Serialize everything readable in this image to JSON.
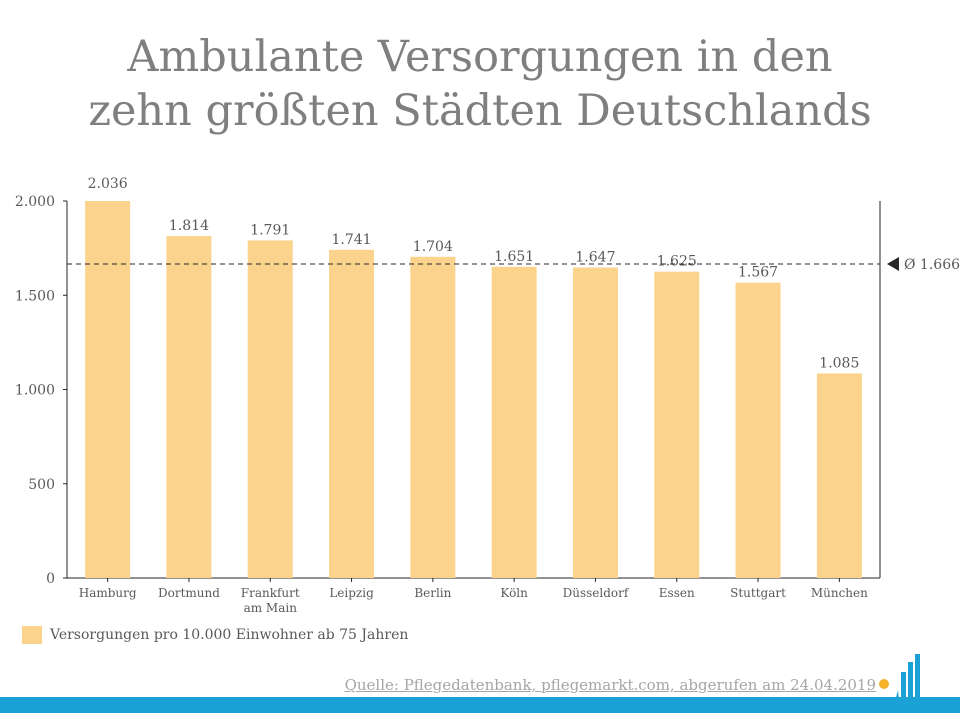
{
  "header": {
    "title_line1": "Ambulante Versorgungen in den",
    "title_line2": "zehn größten Städten Deutschlands"
  },
  "chart_data": {
    "type": "bar",
    "title": "Ambulante Versorgungen in den zehn größten Städten Deutschlands",
    "categories": [
      "Hamburg",
      "Dortmund",
      "Frankfurt am Main",
      "Leipzig",
      "Berlin",
      "Köln",
      "Düsseldorf",
      "Essen",
      "Stuttgart",
      "München"
    ],
    "category_lines": [
      [
        "Hamburg"
      ],
      [
        "Dortmund"
      ],
      [
        "Frankfurt",
        "am Main"
      ],
      [
        "Leipzig"
      ],
      [
        "Berlin"
      ],
      [
        "Köln"
      ],
      [
        "Düsseldorf"
      ],
      [
        "Essen"
      ],
      [
        "Stuttgart"
      ],
      [
        "München"
      ]
    ],
    "series": [
      {
        "name": "Versorgungen pro 10.000 Einwohner ab 75 Jahren",
        "values": [
          2036,
          1814,
          1791,
          1741,
          1704,
          1651,
          1647,
          1625,
          1567,
          1085
        ],
        "labels": [
          "2.036",
          "1.814",
          "1.791",
          "1.741",
          "1.704",
          "1.651",
          "1.647",
          "1.625",
          "1.567",
          "1.085"
        ],
        "color": "#fcd38d"
      }
    ],
    "average": {
      "value": 1666,
      "label": "Ø 1.666"
    },
    "ylim": [
      0,
      2000
    ],
    "yticks": [
      0,
      500,
      1000,
      1500,
      2000
    ],
    "ytick_labels": [
      "0",
      "500",
      "1.000",
      "1.500",
      "2.000"
    ],
    "xlabel": "",
    "ylabel": "",
    "legend_position": "bottom-left",
    "grid": false
  },
  "legend": {
    "label": "Versorgungen pro 10.000 Einwohner ab 75 Jahren"
  },
  "source": {
    "text": "Quelle: Pflegedatenbank, pflegemarkt.com, abgerufen am 24.04.2019"
  },
  "colors": {
    "bar": "#fcd38d",
    "brand_blue": "#1aa1d6",
    "accent_yellow": "#f5b12a"
  }
}
